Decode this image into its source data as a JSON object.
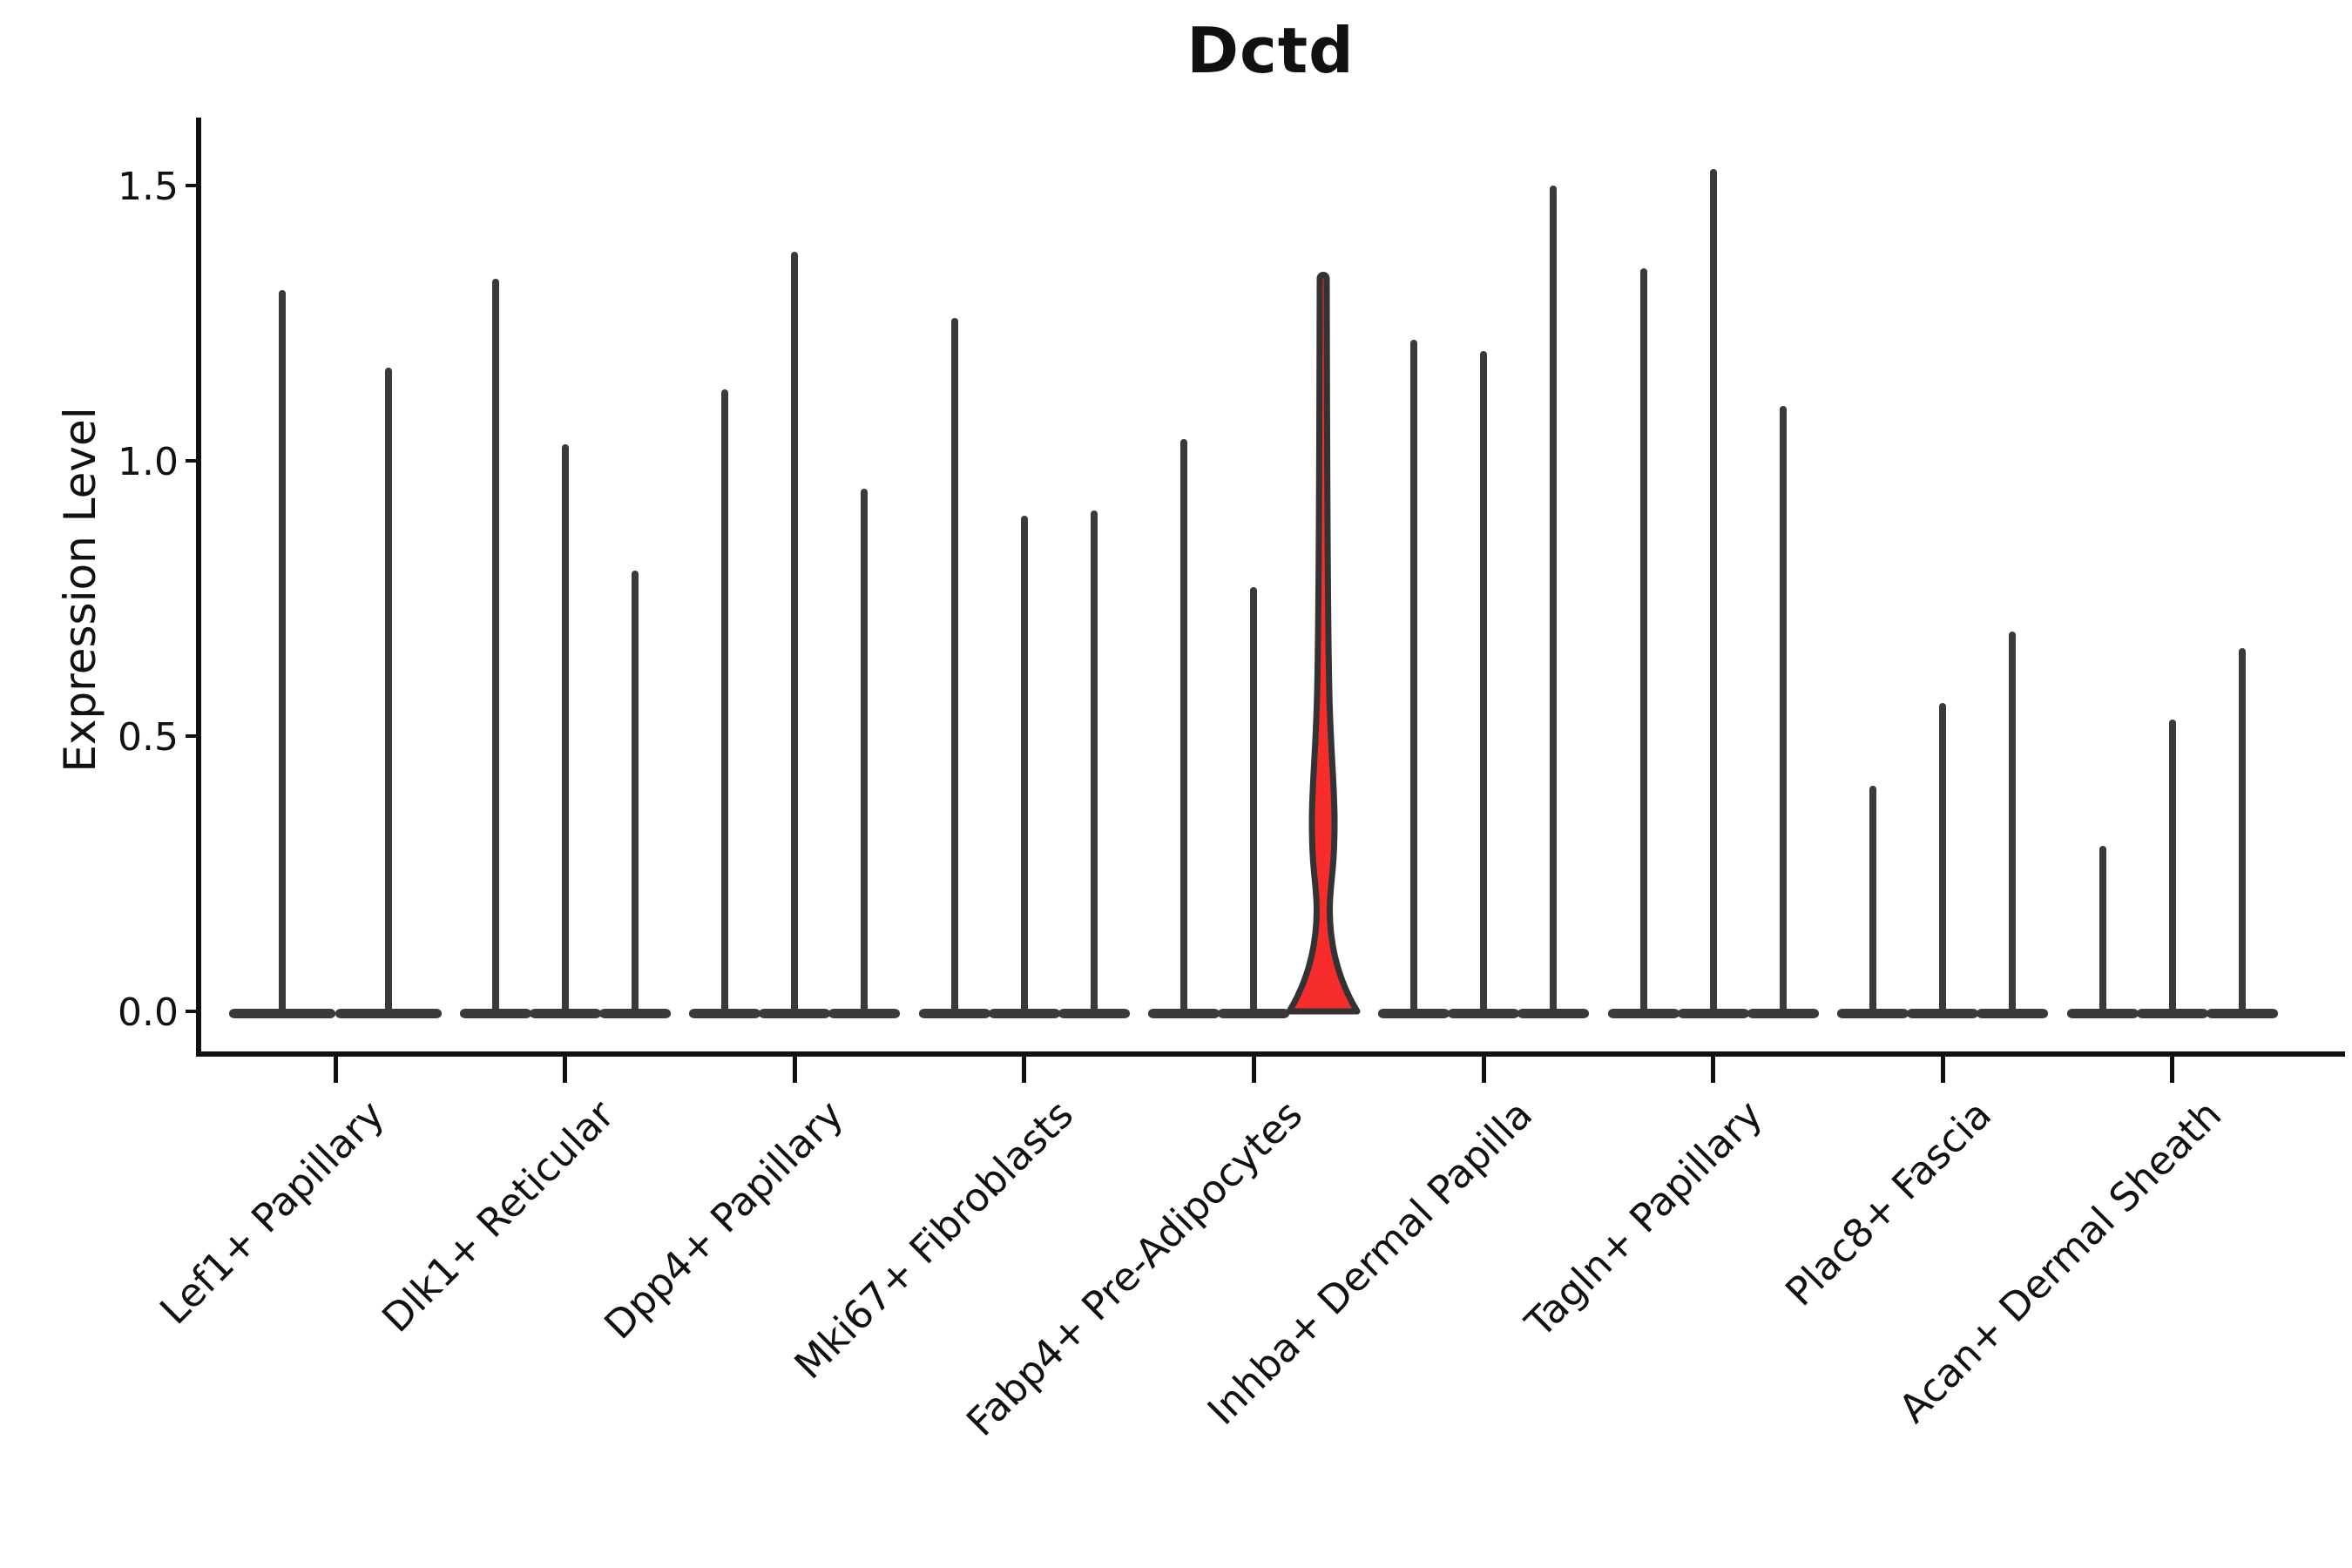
{
  "title": "Dctd",
  "chart_data": {
    "type": "violin",
    "title": "Dctd",
    "xlabel": "",
    "ylabel": "Expression Level",
    "ylim": [
      0,
      1.58
    ],
    "yticks": [
      0.0,
      0.5,
      1.0,
      1.5
    ],
    "grid": false,
    "legend": false,
    "background_color": "#ffffff",
    "axis_color": "#111111",
    "violin_outline_color": "#3a3a3a",
    "highlight_fill_color": "#f72c2c",
    "highlight_outline_color": "#333333",
    "style_note": "Single-cell expression violin plot. Every violin is almost entirely mass at 0 (wide flat base on the axis) with a thin vertical density spike reaching its max expression. The highlighted violin (3rd of Fabp4+ Pre-Adipocytes) is filled red and shows a bell-shaped bulge near 0, a narrow waist around 0.18, and a slight bulge around 0.35.",
    "groups": [
      {
        "category": "Lef1+ Papillary",
        "violins": [
          {
            "max": 1.31,
            "highlighted": false
          },
          {
            "max": 1.17,
            "highlighted": false
          }
        ]
      },
      {
        "category": "Dlk1+ Reticular",
        "violins": [
          {
            "max": 1.33,
            "highlighted": false
          },
          {
            "max": 1.03,
            "highlighted": false
          },
          {
            "max": 0.8,
            "highlighted": false
          }
        ]
      },
      {
        "category": "Dpp4+ Papillary",
        "violins": [
          {
            "max": 1.13,
            "highlighted": false
          },
          {
            "max": 1.38,
            "highlighted": false
          },
          {
            "max": 0.95,
            "highlighted": false
          }
        ]
      },
      {
        "category": "Mki67+ Fibroblasts",
        "violins": [
          {
            "max": 1.26,
            "highlighted": false
          },
          {
            "max": 0.9,
            "highlighted": false
          },
          {
            "max": 0.91,
            "highlighted": false
          }
        ]
      },
      {
        "category": "Fabp4+ Pre-Adipocytes",
        "violins": [
          {
            "max": 1.04,
            "highlighted": false
          },
          {
            "max": 0.77,
            "highlighted": false
          },
          {
            "max": 1.34,
            "highlighted": true
          }
        ]
      },
      {
        "category": "Inhba+ Dermal Papilla",
        "violins": [
          {
            "max": 1.22,
            "highlighted": false
          },
          {
            "max": 1.2,
            "highlighted": false
          },
          {
            "max": 1.5,
            "highlighted": false
          }
        ]
      },
      {
        "category": "Tagln+ Papillary",
        "violins": [
          {
            "max": 1.35,
            "highlighted": false
          },
          {
            "max": 1.53,
            "highlighted": false
          },
          {
            "max": 1.1,
            "highlighted": false
          }
        ]
      },
      {
        "category": "Plac8+ Fascia",
        "violins": [
          {
            "max": 0.41,
            "highlighted": false
          },
          {
            "max": 0.56,
            "highlighted": false
          },
          {
            "max": 0.69,
            "highlighted": false
          }
        ]
      },
      {
        "category": "Acan+ Dermal Sheath",
        "violins": [
          {
            "max": 0.3,
            "highlighted": false
          },
          {
            "max": 0.53,
            "highlighted": false
          },
          {
            "max": 0.66,
            "highlighted": false
          }
        ]
      }
    ]
  }
}
